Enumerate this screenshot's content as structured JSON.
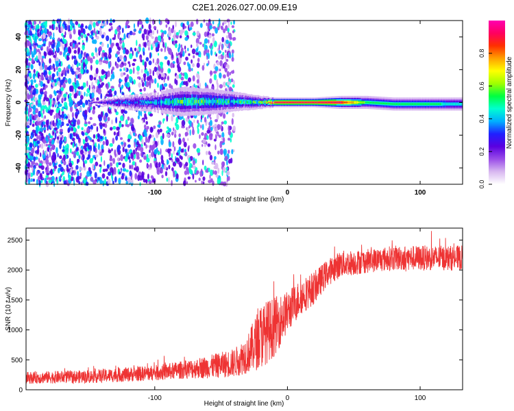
{
  "title": "C2E1.2026.027.00.09.E19",
  "chart_data": [
    {
      "type": "heatmap",
      "xlabel": "Height of straight line (km)",
      "ylabel": "Frequency (Hz)",
      "xlim": [
        -197,
        132
      ],
      "ylim": [
        -50,
        50
      ],
      "xticks": [
        -100,
        0,
        100
      ],
      "xtick_labels": [
        "-100",
        "0",
        "100"
      ],
      "yticks": [
        -40,
        -20,
        0,
        20,
        40
      ],
      "ytick_labels": [
        "-40",
        "-20",
        "0",
        "20",
        "40"
      ],
      "colorbar": {
        "label": "Normalized spectral amplitude",
        "range": [
          0,
          1
        ],
        "ticks": [
          0.0,
          0.2,
          0.4,
          0.6,
          0.8
        ],
        "tick_labels": [
          "0.0",
          "0.2",
          "0.4",
          "0.6",
          "0.8"
        ],
        "colors": [
          "#ffffff",
          "#d8b8f0",
          "#9a4de8",
          "#5a00e0",
          "#2020ff",
          "#00b0ff",
          "#00ffd0",
          "#00ff40",
          "#a0ff00",
          "#ffff00",
          "#ffa000",
          "#ff3000",
          "#ff0060",
          "#ff00b0"
        ]
      },
      "band": {
        "x": [
          -197,
          -150,
          -130,
          -100,
          -80,
          -60,
          -40,
          -20,
          -10,
          0,
          20,
          40,
          60,
          80,
          100,
          132
        ],
        "center_freq": [
          0,
          0,
          0,
          0,
          0.5,
          0.5,
          0.5,
          0,
          0,
          0,
          0,
          0,
          0,
          -1,
          -1,
          -1
        ],
        "half_width": [
          0,
          0,
          2,
          3,
          4.5,
          4,
          3,
          2,
          1.5,
          1.5,
          1.5,
          2,
          2,
          2,
          2,
          2
        ],
        "peak_amplitude": [
          0.15,
          0.2,
          0.3,
          0.4,
          0.5,
          0.5,
          0.45,
          0.5,
          0.95,
          0.95,
          0.95,
          0.9,
          0.55,
          0.5,
          0.55,
          0.45
        ]
      },
      "noise": {
        "x_range": [
          -197,
          -50
        ],
        "density": "high at left, fading toward -50"
      }
    },
    {
      "type": "line",
      "xlabel": "Height of straight line (km)",
      "ylabel": "SNR (10 * v/v)",
      "xlim": [
        -197,
        132
      ],
      "ylim": [
        0,
        2700
      ],
      "xticks": [
        -100,
        0,
        100
      ],
      "xtick_labels": [
        "-100",
        "0",
        "100"
      ],
      "yticks": [
        0,
        500,
        1000,
        1500,
        2000,
        2500
      ],
      "ytick_labels": [
        "0",
        "500",
        "1000",
        "1500",
        "2000",
        "2500"
      ],
      "color": "#ee3333",
      "envelope": {
        "x": [
          -197,
          -150,
          -100,
          -80,
          -60,
          -40,
          -30,
          -20,
          -10,
          0,
          10,
          20,
          30,
          40,
          60,
          80,
          100,
          132
        ],
        "mean": [
          200,
          220,
          280,
          330,
          380,
          450,
          600,
          900,
          1050,
          1300,
          1550,
          1700,
          1950,
          2100,
          2150,
          2200,
          2200,
          2200
        ],
        "spread": [
          200,
          220,
          260,
          300,
          380,
          480,
          650,
          1100,
          1000,
          700,
          600,
          550,
          450,
          450,
          400,
          420,
          420,
          420
        ]
      }
    }
  ]
}
